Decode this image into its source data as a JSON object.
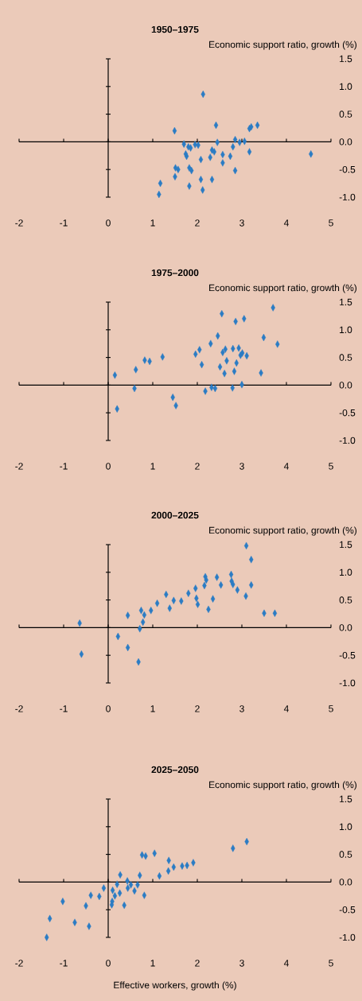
{
  "chart_data": [
    {
      "type": "scatter",
      "title": "1950–1975",
      "ylabel": "Economic support ratio, growth (%)",
      "color": "#2b7cc4",
      "marker": "diamond",
      "xlim": [
        -2,
        5
      ],
      "ylim": [
        -1,
        1.5
      ],
      "xticks": [
        -2,
        -1,
        0,
        1,
        2,
        3,
        4,
        5
      ],
      "yticks": [
        {
          "value": -1,
          "label": "-1.0"
        },
        -0.5,
        {
          "value": 0,
          "label": "0.0"
        },
        0.5,
        {
          "value": 1,
          "label": "1.0"
        },
        1.5
      ],
      "x": [
        1.49,
        2.13,
        2.42,
        3.35,
        3.17,
        3.21,
        1.7,
        1.85,
        1.8,
        1.95,
        2.02,
        1.76,
        1.74,
        2.08,
        2.33,
        2.38,
        2.45,
        2.29,
        2.57,
        2.57,
        2.74,
        2.8,
        2.85,
        2.95,
        3.06,
        3.17,
        2.85,
        1.51,
        1.57,
        1.5,
        1.82,
        1.87,
        1.82,
        2.08,
        2.12,
        2.33,
        1.17,
        1.14,
        4.55
      ],
      "values": [
        0.2,
        0.86,
        0.3,
        0.3,
        0.24,
        0.27,
        -0.04,
        -0.11,
        -0.09,
        -0.05,
        -0.06,
        -0.26,
        -0.22,
        -0.32,
        -0.15,
        -0.18,
        -0.01,
        -0.28,
        -0.23,
        -0.38,
        -0.26,
        -0.09,
        0.04,
        -0.01,
        0.01,
        -0.18,
        -0.52,
        -0.47,
        -0.5,
        -0.63,
        -0.47,
        -0.52,
        -0.8,
        -0.68,
        -0.87,
        -0.68,
        -0.75,
        -0.95,
        -0.22
      ]
    },
    {
      "type": "scatter",
      "title": "1975–2000",
      "ylabel": "Economic support ratio, growth (%)",
      "color": "#2b7cc4",
      "marker": "diamond",
      "xlim": [
        -2,
        5
      ],
      "ylim": [
        -1,
        1.5
      ],
      "xticks": [
        -2,
        -1,
        0,
        1,
        2,
        3,
        4,
        5
      ],
      "yticks": [
        {
          "value": -1,
          "label": "-1.0"
        },
        -0.5,
        {
          "value": 0,
          "label": "0.0"
        },
        0.5,
        {
          "value": 1,
          "label": "1.0"
        },
        1.5
      ],
      "x": [
        0.15,
        0.2,
        0.62,
        0.59,
        0.82,
        0.93,
        1.22,
        1.45,
        1.52,
        1.96,
        2.05,
        2.1,
        2.18,
        2.3,
        2.32,
        2.4,
        2.46,
        2.55,
        2.51,
        2.57,
        2.63,
        2.66,
        2.61,
        2.79,
        2.8,
        2.83,
        2.88,
        2.86,
        2.93,
        2.97,
        3.01,
        3.11,
        3.0,
        3.05,
        3.43,
        3.49,
        3.7,
        3.8
      ],
      "values": [
        0.18,
        -0.43,
        0.28,
        -0.06,
        0.45,
        0.43,
        0.51,
        -0.22,
        -0.37,
        0.56,
        0.64,
        0.37,
        -0.11,
        0.75,
        -0.04,
        -0.06,
        0.89,
        1.29,
        0.33,
        0.59,
        0.65,
        0.44,
        0.21,
        -0.05,
        0.66,
        0.25,
        0.4,
        1.15,
        0.67,
        0.54,
        0.58,
        0.53,
        0.01,
        1.2,
        0.22,
        0.86,
        1.4,
        0.74
      ]
    },
    {
      "type": "scatter",
      "title": "2000–2025",
      "ylabel": "Economic support ratio, growth (%)",
      "color": "#2b7cc4",
      "marker": "diamond",
      "xlim": [
        -2,
        5
      ],
      "ylim": [
        -1,
        1.5
      ],
      "xticks": [
        -2,
        -1,
        0,
        1,
        2,
        3,
        4,
        5
      ],
      "yticks": [
        {
          "value": -1,
          "label": "-1.0"
        },
        -0.5,
        {
          "value": 0,
          "label": "0.0"
        },
        0.5,
        {
          "value": 1,
          "label": "1.0"
        },
        1.5
      ],
      "x": [
        -0.64,
        -0.6,
        0.22,
        0.44,
        0.44,
        0.68,
        0.69,
        0.71,
        0.74,
        0.78,
        0.81,
        0.96,
        1.1,
        1.3,
        1.38,
        1.47,
        1.64,
        1.8,
        1.96,
        1.98,
        2.01,
        2.16,
        2.18,
        2.2,
        2.25,
        2.35,
        2.44,
        2.53,
        2.76,
        2.77,
        2.8,
        2.9,
        3.09,
        3.1,
        3.21,
        3.21,
        3.5,
        3.74
      ],
      "values": [
        0.08,
        -0.48,
        -0.16,
        0.22,
        -0.36,
        -0.62,
        null,
        -0.02,
        0.31,
        0.1,
        0.23,
        0.31,
        0.44,
        0.6,
        0.35,
        0.49,
        0.48,
        0.62,
        0.71,
        0.53,
        0.42,
        0.76,
        0.92,
        0.86,
        0.33,
        0.52,
        0.91,
        0.77,
        0.96,
        0.84,
        0.78,
        0.68,
        0.57,
        1.48,
        0.77,
        1.23,
        0.26,
        0.26
      ]
    },
    {
      "type": "scatter",
      "title": "2025–2050",
      "ylabel": "Economic support ratio, growth (%)",
      "xlabel": "Effective workers, growth (%)",
      "color": "#2b7cc4",
      "marker": "diamond",
      "xlim": [
        -2,
        5
      ],
      "ylim": [
        -1,
        1.5
      ],
      "xticks": [
        -2,
        -1,
        0,
        1,
        2,
        3,
        4,
        5
      ],
      "yticks": [
        {
          "value": -1,
          "label": "-1.0"
        },
        -0.5,
        {
          "value": 0,
          "label": "0.0"
        },
        0.5,
        {
          "value": 1,
          "label": "1.0"
        },
        1.5
      ],
      "x": [
        -1.38,
        -1.31,
        -1.02,
        -0.75,
        -0.5,
        -0.43,
        -0.39,
        -0.2,
        -0.1,
        0.09,
        0.08,
        0.1,
        0.15,
        0.2,
        0.26,
        0.27,
        0.36,
        0.43,
        0.44,
        0.51,
        0.59,
        0.66,
        0.71,
        0.76,
        0.84,
        0.81,
        1.04,
        1.15,
        1.36,
        1.35,
        1.47,
        1.66,
        1.77,
        1.91,
        2.8,
        3.11
      ],
      "values": [
        -1.0,
        -0.66,
        -0.35,
        -0.73,
        -0.43,
        -0.8,
        -0.24,
        -0.26,
        -0.11,
        -0.35,
        -0.41,
        -0.15,
        -0.25,
        -0.04,
        -0.2,
        0.13,
        -0.42,
        0.02,
        -0.11,
        -0.05,
        -0.16,
        -0.05,
        0.12,
        0.49,
        0.47,
        -0.24,
        0.52,
        0.11,
        0.39,
        0.2,
        0.27,
        0.29,
        0.3,
        0.35,
        0.61,
        0.73
      ]
    }
  ]
}
